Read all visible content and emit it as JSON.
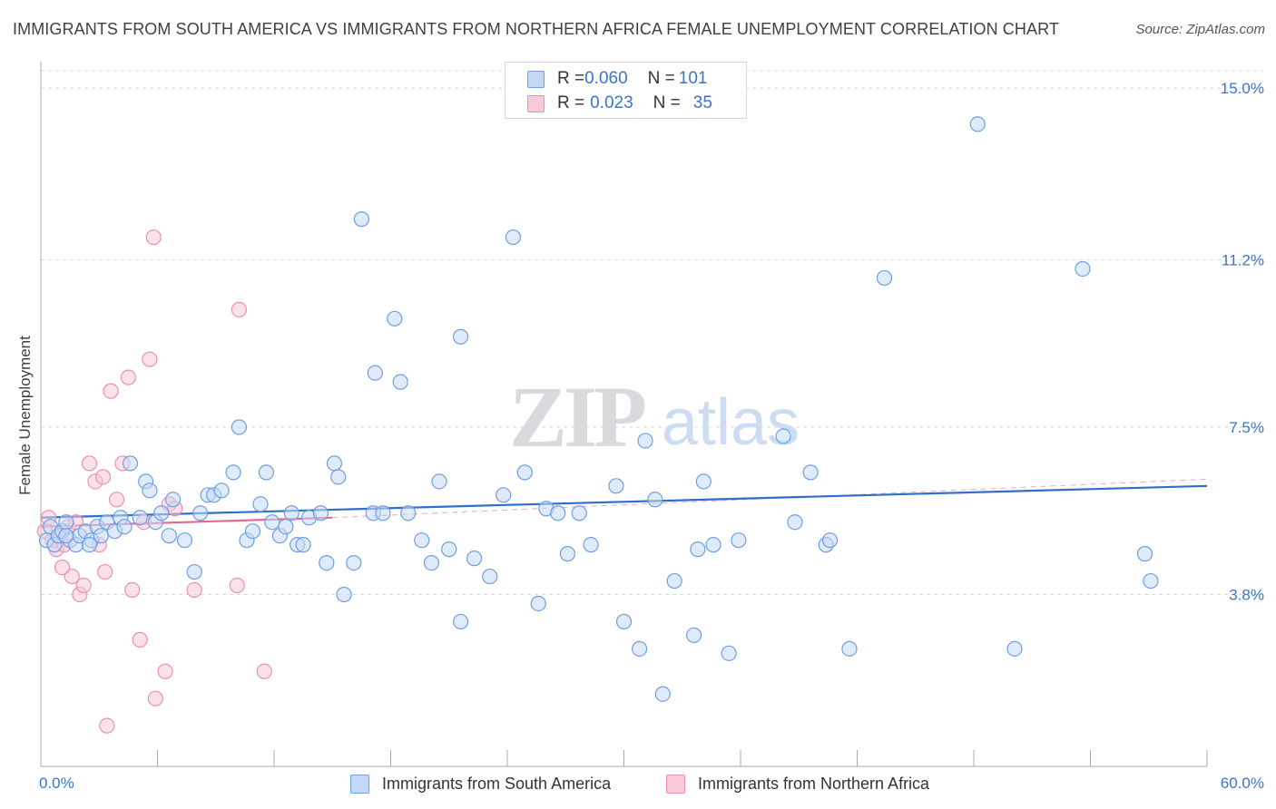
{
  "title": "IMMIGRANTS FROM SOUTH AMERICA VS IMMIGRANTS FROM NORTHERN AFRICA FEMALE UNEMPLOYMENT CORRELATION CHART",
  "source": "Source: ZipAtlas.com",
  "watermark": {
    "zip": "ZIP",
    "atlas": "atlas"
  },
  "colors": {
    "blue": "#6f9fe0",
    "blue_fill": "#c4d8f5",
    "blue_line": "#2f6fcb",
    "pink": "#ef8fae",
    "pink_fill": "#f8c9d8",
    "pink_line": "#e06c93",
    "axis_text": "#3b74c9"
  },
  "legend": {
    "rows": [
      {
        "r_label": "R = ",
        "r_value": "0.060",
        "n_label": "N = ",
        "n_value": "101"
      },
      {
        "r_label": "R = ",
        "r_value": "0.023",
        "n_label": "N = ",
        "n_value": "35"
      }
    ]
  },
  "chart_data": {
    "type": "scatter",
    "ylabel": "Female Unemployment",
    "xlabel": "",
    "x_axis": {
      "min": 0,
      "max": 60,
      "tick_labels": [
        "0.0%",
        "60.0%"
      ]
    },
    "y_axis": {
      "min": 0,
      "max": 15.0,
      "ticks": [
        3.8,
        7.5,
        11.2,
        15.0
      ],
      "tick_labels": [
        "3.8%",
        "7.5%",
        "11.2%",
        "15.0%"
      ]
    },
    "grid": true,
    "legend_position": "top-center",
    "series": [
      {
        "name": "Immigrants from South America",
        "color_key": "blue",
        "trend": {
          "x0": 0,
          "y0": 5.5,
          "x1": 60,
          "y1": 6.2
        },
        "points": [
          [
            0.3,
            5.0
          ],
          [
            0.5,
            5.3
          ],
          [
            0.7,
            4.9
          ],
          [
            0.9,
            5.1
          ],
          [
            1.1,
            5.2
          ],
          [
            1.3,
            5.4
          ],
          [
            1.5,
            5.0
          ],
          [
            1.8,
            4.9
          ],
          [
            2.0,
            5.1
          ],
          [
            2.3,
            5.2
          ],
          [
            2.6,
            5.0
          ],
          [
            2.9,
            5.3
          ],
          [
            3.1,
            5.1
          ],
          [
            3.4,
            5.4
          ],
          [
            3.8,
            5.2
          ],
          [
            4.1,
            5.5
          ],
          [
            4.3,
            5.3
          ],
          [
            4.6,
            6.7
          ],
          [
            5.1,
            5.5
          ],
          [
            5.4,
            6.3
          ],
          [
            5.6,
            6.1
          ],
          [
            5.9,
            5.4
          ],
          [
            6.2,
            5.6
          ],
          [
            6.6,
            5.1
          ],
          [
            6.8,
            5.9
          ],
          [
            7.4,
            5.0
          ],
          [
            7.9,
            4.3
          ],
          [
            8.2,
            5.6
          ],
          [
            8.6,
            6.0
          ],
          [
            8.9,
            6.0
          ],
          [
            9.3,
            6.1
          ],
          [
            9.9,
            6.5
          ],
          [
            10.2,
            7.5
          ],
          [
            10.6,
            5.0
          ],
          [
            10.9,
            5.2
          ],
          [
            11.3,
            5.8
          ],
          [
            11.6,
            6.5
          ],
          [
            11.9,
            5.4
          ],
          [
            12.3,
            5.1
          ],
          [
            12.6,
            5.3
          ],
          [
            12.9,
            5.6
          ],
          [
            13.2,
            4.9
          ],
          [
            13.5,
            4.9
          ],
          [
            13.8,
            5.5
          ],
          [
            14.4,
            5.6
          ],
          [
            14.7,
            4.5
          ],
          [
            15.1,
            6.7
          ],
          [
            15.3,
            6.4
          ],
          [
            15.6,
            3.8
          ],
          [
            16.1,
            4.5
          ],
          [
            16.5,
            12.1
          ],
          [
            17.1,
            5.6
          ],
          [
            17.6,
            5.6
          ],
          [
            18.2,
            9.9
          ],
          [
            18.9,
            5.6
          ],
          [
            19.6,
            5.0
          ],
          [
            20.1,
            4.5
          ],
          [
            20.5,
            6.3
          ],
          [
            21.0,
            4.8
          ],
          [
            21.6,
            3.2
          ],
          [
            22.3,
            4.6
          ],
          [
            23.1,
            4.2
          ],
          [
            23.8,
            6.0
          ],
          [
            24.3,
            11.7
          ],
          [
            24.9,
            6.5
          ],
          [
            25.6,
            3.6
          ],
          [
            26.0,
            5.7
          ],
          [
            26.6,
            5.6
          ],
          [
            27.1,
            4.7
          ],
          [
            27.7,
            5.6
          ],
          [
            28.3,
            4.9
          ],
          [
            29.6,
            6.2
          ],
          [
            30.0,
            3.2
          ],
          [
            30.8,
            2.6
          ],
          [
            31.1,
            7.2
          ],
          [
            31.6,
            5.9
          ],
          [
            32.0,
            1.6
          ],
          [
            32.6,
            4.1
          ],
          [
            33.6,
            2.9
          ],
          [
            33.8,
            4.8
          ],
          [
            34.1,
            6.3
          ],
          [
            34.6,
            4.9
          ],
          [
            35.4,
            2.5
          ],
          [
            35.9,
            5.0
          ],
          [
            38.2,
            7.3
          ],
          [
            38.8,
            5.4
          ],
          [
            39.6,
            6.5
          ],
          [
            40.4,
            4.9
          ],
          [
            40.6,
            5.0
          ],
          [
            41.6,
            2.6
          ],
          [
            43.4,
            10.8
          ],
          [
            48.2,
            14.2
          ],
          [
            50.1,
            2.6
          ],
          [
            53.6,
            11.0
          ],
          [
            56.8,
            4.7
          ],
          [
            57.1,
            4.1
          ],
          [
            1.3,
            5.1
          ],
          [
            2.5,
            4.9
          ],
          [
            17.2,
            8.7
          ],
          [
            21.6,
            9.5
          ],
          [
            18.5,
            8.5
          ]
        ]
      },
      {
        "name": "Immigrants from Northern Africa",
        "color_key": "pink",
        "trend": {
          "x0": 0,
          "y0": 5.3,
          "x1": 15,
          "y1": 5.5
        },
        "points": [
          [
            0.2,
            5.2
          ],
          [
            0.4,
            5.5
          ],
          [
            0.6,
            5.0
          ],
          [
            0.8,
            4.8
          ],
          [
            1.0,
            5.1
          ],
          [
            1.2,
            4.9
          ],
          [
            1.4,
            5.3
          ],
          [
            1.6,
            4.2
          ],
          [
            1.8,
            5.4
          ],
          [
            2.0,
            3.8
          ],
          [
            2.2,
            4.0
          ],
          [
            2.5,
            6.7
          ],
          [
            2.8,
            6.3
          ],
          [
            3.0,
            4.9
          ],
          [
            3.2,
            6.4
          ],
          [
            3.4,
            0.9
          ],
          [
            3.6,
            8.3
          ],
          [
            3.9,
            5.9
          ],
          [
            4.2,
            6.7
          ],
          [
            4.5,
            8.6
          ],
          [
            4.7,
            3.9
          ],
          [
            5.1,
            2.8
          ],
          [
            5.3,
            5.4
          ],
          [
            5.6,
            9.0
          ],
          [
            5.8,
            11.7
          ],
          [
            5.9,
            1.5
          ],
          [
            6.4,
            2.1
          ],
          [
            6.6,
            5.8
          ],
          [
            6.9,
            5.7
          ],
          [
            7.9,
            3.9
          ],
          [
            10.1,
            4.0
          ],
          [
            10.2,
            10.1
          ],
          [
            11.5,
            2.1
          ],
          [
            1.1,
            4.4
          ],
          [
            3.3,
            4.3
          ]
        ]
      }
    ],
    "legend": [
      "Immigrants from South America",
      "Immigrants from Northern Africa"
    ]
  }
}
